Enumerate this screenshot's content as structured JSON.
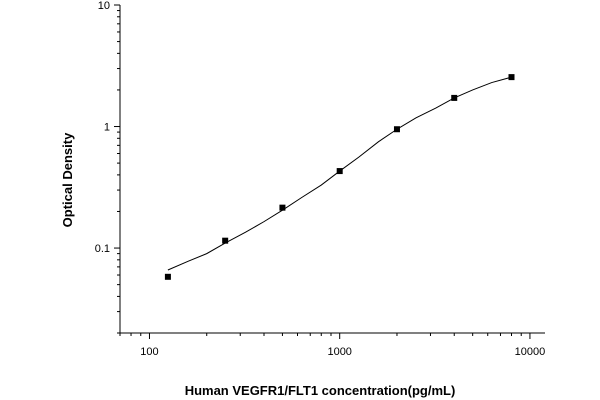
{
  "chart_data": {
    "type": "scatter",
    "title": "",
    "xlabel": "Human VEGFR1/FLT1 concentration(pg/mL)",
    "ylabel": "Optical Density",
    "xscale": "log",
    "yscale": "log",
    "xlim": [
      70,
      12000
    ],
    "ylim": [
      0.02,
      10
    ],
    "x_ticks": [
      100,
      1000,
      10000
    ],
    "x_tick_labels": [
      "100",
      "1000",
      "10000"
    ],
    "y_ticks": [
      0.1,
      1,
      10
    ],
    "y_tick_labels": [
      "0.1",
      "1",
      "10"
    ],
    "grid": false,
    "legend": "none",
    "series": [
      {
        "x": [
          125,
          250,
          500,
          1000,
          2000,
          4000,
          8000
        ],
        "y": [
          0.058,
          0.115,
          0.215,
          0.43,
          0.95,
          1.72,
          2.55
        ]
      }
    ],
    "fit_curve": {
      "x": [
        125,
        160,
        200,
        250,
        320,
        400,
        500,
        630,
        800,
        1000,
        1260,
        1600,
        2000,
        2520,
        3200,
        4000,
        5000,
        6300,
        8000
      ],
      "y": [
        0.066,
        0.078,
        0.09,
        0.11,
        0.135,
        0.165,
        0.205,
        0.26,
        0.33,
        0.43,
        0.56,
        0.75,
        0.95,
        1.18,
        1.42,
        1.72,
        2.0,
        2.3,
        2.55
      ]
    },
    "colors": {
      "marker": "#000000",
      "line": "#000000",
      "axis": "#000000"
    }
  }
}
